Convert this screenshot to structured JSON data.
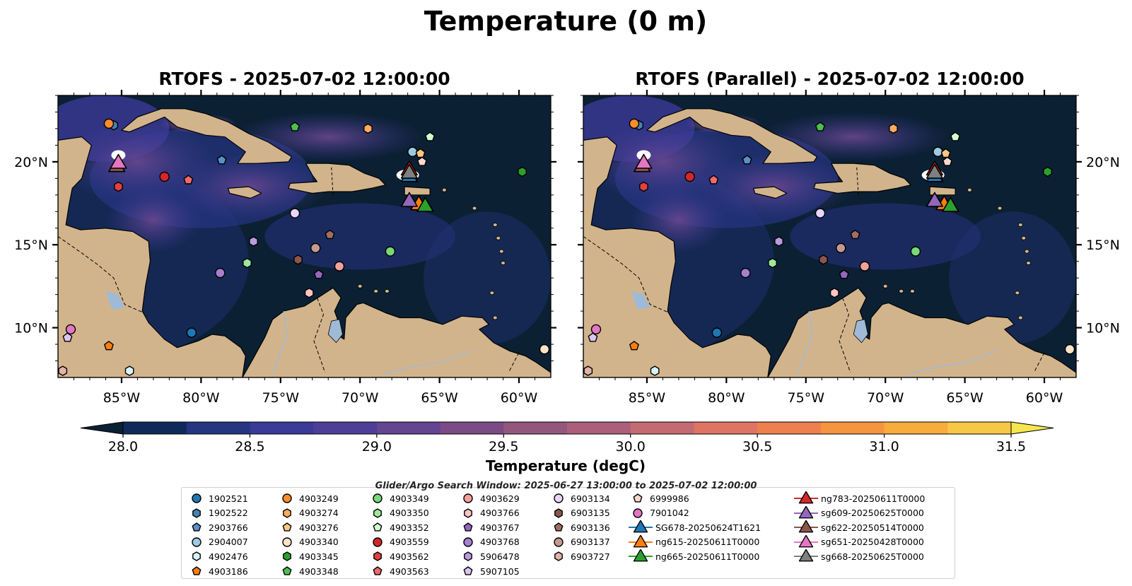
{
  "figure": {
    "title": "Temperature (0 m)",
    "panels": [
      {
        "title": "RTOFS - 2025-07-02 12:00:00"
      },
      {
        "title": "RTOFS (Parallel) - 2025-07-02 12:00:00"
      }
    ],
    "colorbar": {
      "label": "Temperature (degC)",
      "min": 28.0,
      "max": 31.5,
      "step": 0.25,
      "ticks": [
        "28.0",
        "28.5",
        "29.0",
        "29.5",
        "30.0",
        "30.5",
        "31.0",
        "31.5"
      ],
      "colormap": [
        "#0b2033",
        "#0f2a5a",
        "#253582",
        "#3a3a97",
        "#4d3e98",
        "#64458f",
        "#7a4b87",
        "#93577e",
        "#ab5f7a",
        "#c46a72",
        "#de7464",
        "#ee8050",
        "#f59540",
        "#f7ac3b",
        "#f7c845",
        "#f5e650"
      ],
      "extend": "both"
    },
    "subtitle": "Glider/Argo Search Window: 2025-06-27 13:00:00 to 2025-07-02 12:00:00"
  },
  "chart_data": {
    "type": "map",
    "extent": {
      "lon": [
        -89,
        -58
      ],
      "lat": [
        7,
        24
      ]
    },
    "x_ticks": [
      "85°W",
      "80°W",
      "75°W",
      "70°W",
      "65°W",
      "60°W"
    ],
    "x_tick_values": [
      -85,
      -80,
      -75,
      -70,
      -65,
      -60
    ],
    "y_ticks": [
      "20°N",
      "15°N",
      "10°N"
    ],
    "y_tick_values": [
      20,
      15,
      10
    ],
    "argo_floats": [
      {
        "id": "1902521",
        "lon": -80.6,
        "lat": 9.7,
        "marker": "circle",
        "color": "#1f77b4"
      },
      {
        "id": "1902522",
        "lon": -85.5,
        "lat": 22.2,
        "marker": "hexagon",
        "color": "#4682b4"
      },
      {
        "id": "2903766",
        "lon": -78.7,
        "lat": 20.1,
        "marker": "pentagon",
        "color": "#5a8fcc"
      },
      {
        "id": "2904007",
        "lon": -66.7,
        "lat": 20.6,
        "marker": "circle",
        "color": "#9ecae1"
      },
      {
        "id": "4902476",
        "lon": -84.5,
        "lat": 7.4,
        "marker": "hexagon",
        "color": "#d8f3ff"
      },
      {
        "id": "4903186",
        "lon": -85.8,
        "lat": 8.9,
        "marker": "pentagon",
        "color": "#ff7f0e"
      },
      {
        "id": "4903249",
        "lon": -85.8,
        "lat": 22.3,
        "marker": "circle",
        "color": "#ff8c2a"
      },
      {
        "id": "4903274",
        "lon": -69.5,
        "lat": 22.0,
        "marker": "hexagon",
        "color": "#ffab5e"
      },
      {
        "id": "4903276",
        "lon": -66.2,
        "lat": 20.5,
        "marker": "pentagon",
        "color": "#ffc680"
      },
      {
        "id": "4903340",
        "lon": -58.4,
        "lat": 8.7,
        "marker": "circle",
        "color": "#fde3c8"
      },
      {
        "id": "4903345",
        "lon": -59.8,
        "lat": 19.4,
        "marker": "hexagon",
        "color": "#2ca02c"
      },
      {
        "id": "4903348",
        "lon": -74.1,
        "lat": 22.1,
        "marker": "pentagon",
        "color": "#4ec04e"
      },
      {
        "id": "4903349",
        "lon": -68.1,
        "lat": 14.6,
        "marker": "circle",
        "color": "#77d977"
      },
      {
        "id": "4903350",
        "lon": -77.1,
        "lat": 13.9,
        "marker": "hexagon",
        "color": "#9ee89e"
      },
      {
        "id": "4903352",
        "lon": -65.6,
        "lat": 21.5,
        "marker": "pentagon",
        "color": "#cfffcf"
      },
      {
        "id": "4903559",
        "lon": -82.3,
        "lat": 19.1,
        "marker": "circle",
        "color": "#d62728"
      },
      {
        "id": "4903562",
        "lon": -85.2,
        "lat": 18.5,
        "marker": "hexagon",
        "color": "#e44040"
      },
      {
        "id": "4903563",
        "lon": -80.8,
        "lat": 18.9,
        "marker": "pentagon",
        "color": "#f06a6a"
      },
      {
        "id": "4903629",
        "lon": -71.3,
        "lat": 13.7,
        "marker": "circle",
        "color": "#f4a09a"
      },
      {
        "id": "4903766",
        "lon": -73.2,
        "lat": 12.1,
        "marker": "hexagon",
        "color": "#ffc4c4"
      },
      {
        "id": "4903767",
        "lon": -72.6,
        "lat": 13.2,
        "marker": "pentagon",
        "color": "#9467bd"
      },
      {
        "id": "4903768",
        "lon": -78.8,
        "lat": 13.3,
        "marker": "circle",
        "color": "#a57fd0"
      },
      {
        "id": "5906478",
        "lon": -76.7,
        "lat": 15.2,
        "marker": "hexagon",
        "color": "#bb9ae0"
      },
      {
        "id": "5907105",
        "lon": -88.4,
        "lat": 9.4,
        "marker": "pentagon",
        "color": "#dcc6f0"
      },
      {
        "id": "6903134",
        "lon": -74.1,
        "lat": 16.9,
        "marker": "circle",
        "color": "#e8d5ff"
      },
      {
        "id": "6903135",
        "lon": -73.9,
        "lat": 14.1,
        "marker": "hexagon",
        "color": "#8c564b"
      },
      {
        "id": "6903136",
        "lon": -71.9,
        "lat": 15.6,
        "marker": "pentagon",
        "color": "#a06e62"
      },
      {
        "id": "6903137",
        "lon": -72.8,
        "lat": 14.8,
        "marker": "circle",
        "color": "#c49a8f"
      },
      {
        "id": "6903727",
        "lon": -88.7,
        "lat": 7.4,
        "marker": "hexagon",
        "color": "#e0b4a8"
      },
      {
        "id": "6999986",
        "lon": -66.1,
        "lat": 20.0,
        "marker": "pentagon",
        "color": "#f7d8ce"
      },
      {
        "id": "7901042",
        "lon": -88.2,
        "lat": 9.9,
        "marker": "circle",
        "color": "#e377c2"
      }
    ],
    "gliders": [
      {
        "id": "SG678-20250624T1621",
        "lon": -66.9,
        "lat": 19.2,
        "color": "#1f77b4"
      },
      {
        "id": "ng615-20250611T0000",
        "lon": -66.3,
        "lat": 17.5,
        "color": "#ff7f0e"
      },
      {
        "id": "ng665-20250611T0000",
        "lon": -65.9,
        "lat": 17.4,
        "color": "#2ca02c"
      },
      {
        "id": "ng783-20250611T0000",
        "lon": -66.9,
        "lat": 19.6,
        "color": "#d62728"
      },
      {
        "id": "sg609-20250625T0000",
        "lon": -66.9,
        "lat": 17.7,
        "color": "#9467bd"
      },
      {
        "id": "sg622-20250514T0000",
        "lon": -85.3,
        "lat": 19.8,
        "color": "#8c564b"
      },
      {
        "id": "sg651-20250428T0000",
        "lon": -85.2,
        "lat": 20.0,
        "color": "#e377c2"
      },
      {
        "id": "sg668-20250625T0000",
        "lon": -66.9,
        "lat": 19.4,
        "color": "#7f7f7f"
      }
    ],
    "legend_columns": [
      [
        "1902521",
        "1902522",
        "2903766",
        "2904007",
        "4902476",
        "4903186"
      ],
      [
        "4903249",
        "4903274",
        "4903276",
        "4903340",
        "4903345",
        "4903348"
      ],
      [
        "4903349",
        "4903350",
        "4903352",
        "4903559",
        "4903562",
        "4903563"
      ],
      [
        "4903629",
        "4903766",
        "4903767",
        "4903768",
        "5906478",
        "5907105"
      ],
      [
        "6903134",
        "6903135",
        "6903136",
        "6903137",
        "6903727"
      ],
      [
        "6999986",
        "7901042",
        "SG678-20250624T1621",
        "ng615-20250611T0000",
        "ng665-20250611T0000"
      ],
      [
        "ng783-20250611T0000",
        "sg609-20250625T0000",
        "sg622-20250514T0000",
        "sg651-20250428T0000",
        "sg668-20250625T0000"
      ]
    ]
  }
}
